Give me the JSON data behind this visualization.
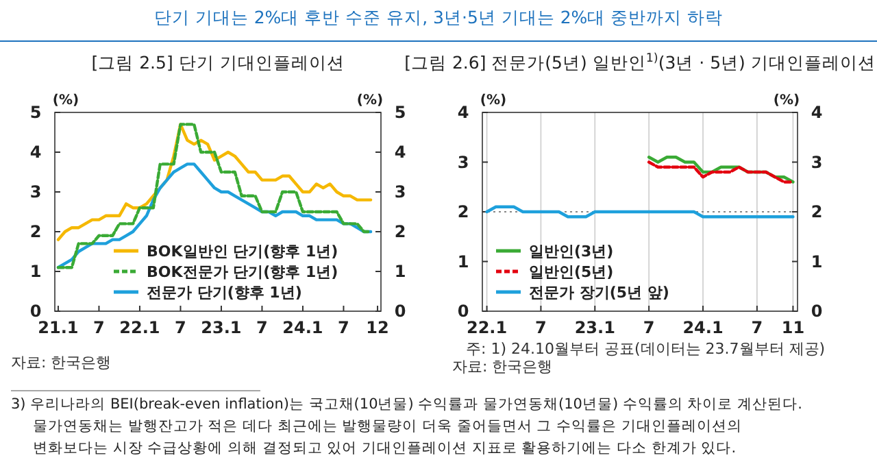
{
  "chart_data": [
    {
      "type": "line",
      "title": "[그림 2.5] 단기 기대인플레이션",
      "ylabel": "(%)",
      "y2label": "(%)",
      "annotations": [
        "단기 기대는 2%대 후반 수준 유지, 3년·5년 기대는 2%대 중반까지 하락",
        "자료: 한국은행"
      ],
      "categories": [
        "21.1",
        null,
        null,
        null,
        null,
        null,
        "7",
        null,
        null,
        null,
        null,
        null,
        "22.1",
        null,
        null,
        null,
        null,
        null,
        "7",
        null,
        null,
        null,
        null,
        null,
        "23.1",
        null,
        null,
        null,
        null,
        null,
        "7",
        null,
        null,
        null,
        null,
        null,
        "24.1",
        null,
        null,
        null,
        null,
        null,
        "7",
        null,
        null,
        null,
        null,
        "12"
      ],
      "series": [
        {
          "name": "BOK일반인 단기(향후 1년)",
          "color": "#f5b800",
          "values": [
            1.8,
            2.0,
            2.1,
            2.1,
            2.2,
            2.3,
            2.3,
            2.4,
            2.4,
            2.4,
            2.7,
            2.6,
            2.6,
            2.7,
            2.9,
            3.1,
            3.3,
            3.9,
            4.7,
            4.3,
            4.2,
            4.3,
            4.2,
            3.8,
            3.9,
            4.0,
            3.9,
            3.7,
            3.5,
            3.5,
            3.3,
            3.3,
            3.3,
            3.4,
            3.4,
            3.2,
            3.0,
            3.0,
            3.2,
            3.1,
            3.2,
            3.0,
            2.9,
            2.9,
            2.8,
            2.8,
            2.8,
            null
          ]
        },
        {
          "name": "BOK전문가 단기(향후 1년)",
          "color": "#3aaa35",
          "line_style": "dashed",
          "values": [
            1.1,
            1.1,
            1.1,
            1.7,
            1.7,
            1.7,
            1.9,
            1.9,
            1.9,
            2.2,
            2.2,
            2.2,
            2.6,
            2.6,
            2.6,
            3.7,
            3.7,
            3.7,
            4.7,
            4.7,
            4.7,
            4.0,
            4.0,
            4.0,
            3.5,
            3.5,
            3.5,
            2.9,
            2.9,
            2.9,
            2.5,
            2.5,
            2.5,
            3.0,
            3.0,
            3.0,
            2.5,
            2.5,
            2.5,
            2.5,
            2.5,
            2.5,
            2.2,
            2.2,
            2.2,
            2.0,
            2.0,
            null
          ]
        },
        {
          "name": "전문가 단기(향후 1년)",
          "color": "#1ea0dc",
          "values": [
            1.1,
            1.2,
            1.3,
            1.5,
            1.6,
            1.7,
            1.7,
            1.7,
            1.8,
            1.8,
            1.9,
            2.0,
            2.2,
            2.4,
            2.8,
            3.1,
            3.3,
            3.5,
            3.6,
            3.7,
            3.7,
            3.5,
            3.3,
            3.1,
            3.0,
            3.0,
            2.9,
            2.8,
            2.7,
            2.6,
            2.5,
            2.5,
            2.4,
            2.5,
            2.5,
            2.5,
            2.4,
            2.4,
            2.3,
            2.3,
            2.3,
            2.3,
            2.2,
            2.2,
            2.1,
            2.0,
            2.0,
            null
          ]
        }
      ],
      "ylim": [
        0,
        5
      ],
      "yticks": [
        0,
        1,
        2,
        3,
        4,
        5
      ],
      "y2lim": [
        0,
        5
      ],
      "y2ticks": [
        0,
        1,
        2,
        3,
        4,
        5
      ],
      "grid": false,
      "legend": "bottom right",
      "line_style": "solid"
    },
    {
      "type": "line",
      "title": "[그림 2.6] 전문가(5년) 일반인$^{1)}$(3년 · 5년) 기대인플레이션",
      "ylabel": "(%)",
      "y2label": "(%)",
      "annotations": [
        "주: 1) 24.10월부터 공표(데이터는 23.7월부터 제공)",
        "자료: 한국은행",
        "3) 우리나라의 BEI(break-even inflation)는 국고채(10년물) 수익률과 물가연동채(10년물) 수익률의 차이로 계산된다.",
        "물가연동채는 발행잔고가 적은 데다 최근에는 발행물량이 더욱 줄어들면서 그 수익률은 기대인플레이션의",
        "변화보다는 시장 수급상황에 의해 결정되고 있어 기대인플레이션 지표로 활용하기에는 다소 한계가 있다."
      ],
      "categories": [
        "22.1",
        null,
        null,
        null,
        null,
        null,
        "7",
        null,
        null,
        null,
        null,
        null,
        "23.1",
        null,
        null,
        null,
        null,
        null,
        "7",
        null,
        null,
        null,
        null,
        null,
        "24.1",
        null,
        null,
        null,
        null,
        null,
        "7",
        null,
        null,
        null,
        "11"
      ],
      "series": [
        {
          "name": "일반인(3년)",
          "color": "#3aaa35",
          "values": [
            null,
            null,
            null,
            null,
            null,
            null,
            null,
            null,
            null,
            null,
            null,
            null,
            null,
            null,
            null,
            null,
            null,
            null,
            3.1,
            3.0,
            3.1,
            3.1,
            3.0,
            3.0,
            2.8,
            2.8,
            2.9,
            2.9,
            2.9,
            2.8,
            2.8,
            2.8,
            2.7,
            2.7,
            2.6
          ]
        },
        {
          "name": "일반인(5년)",
          "color": "#e3000f",
          "line_style": "dashed",
          "values": [
            null,
            null,
            null,
            null,
            null,
            null,
            null,
            null,
            null,
            null,
            null,
            null,
            null,
            null,
            null,
            null,
            null,
            null,
            3.0,
            2.9,
            2.9,
            2.9,
            2.9,
            2.9,
            2.7,
            2.8,
            2.8,
            2.8,
            2.9,
            2.8,
            2.8,
            2.8,
            2.7,
            2.6,
            2.6
          ]
        },
        {
          "name": "전문가 장기(5년 앞)",
          "color": "#1ea0dc",
          "values": [
            2.0,
            2.1,
            2.1,
            2.1,
            2.0,
            2.0,
            2.0,
            2.0,
            2.0,
            1.9,
            1.9,
            1.9,
            2.0,
            2.0,
            2.0,
            2.0,
            2.0,
            2.0,
            2.0,
            2.0,
            2.0,
            2.0,
            2.0,
            2.0,
            1.9,
            1.9,
            1.9,
            1.9,
            1.9,
            1.9,
            1.9,
            1.9,
            1.9,
            1.9,
            1.9
          ]
        }
      ],
      "ylim": [
        0,
        4
      ],
      "yticks": [
        0,
        1,
        2,
        3,
        4
      ],
      "y2lim": [
        0,
        4
      ],
      "y2ticks": [
        0,
        1,
        2,
        3,
        4
      ],
      "grid": "x",
      "legend": "bottom left",
      "line_style": "solid",
      "ref_lines": [
        {
          "axis": "y",
          "value": 2,
          "color": "#888888",
          "line_style": "dotted"
        }
      ]
    }
  ]
}
